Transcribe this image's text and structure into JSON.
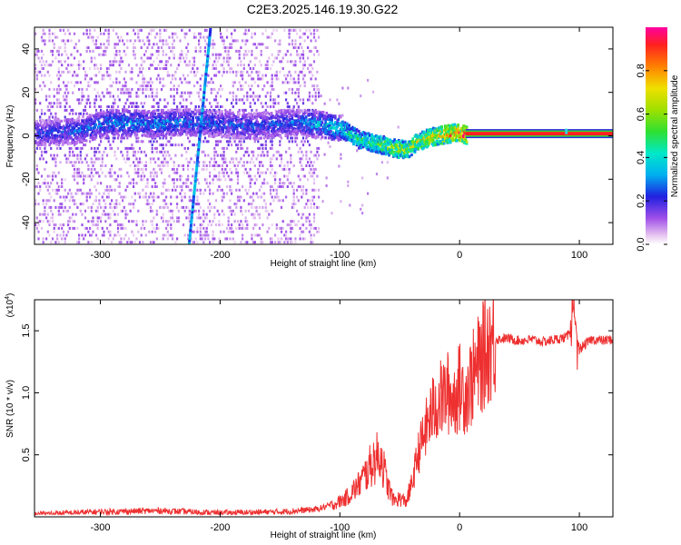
{
  "title": "C2E3.2025.146.19.30.G22",
  "chart_data": [
    {
      "type": "heatmap",
      "xlabel": "Height of straight line (km)",
      "ylabel": "Frequency (Hz)",
      "xlim": [
        -355,
        128
      ],
      "ylim": [
        -50,
        50
      ],
      "xticks": [
        -300,
        -200,
        -100,
        0,
        100
      ],
      "yticks": [
        -40,
        -20,
        0,
        20,
        40
      ],
      "colorbar": {
        "label": "Normalized spectral amplitude",
        "range": [
          0,
          1
        ],
        "ticks": [
          "0.0",
          "0.2",
          "0.4",
          "0.6",
          "0.8"
        ],
        "tick_values": [
          0.0,
          0.2,
          0.4,
          0.6,
          0.8
        ]
      },
      "ridge": [
        {
          "x": -350,
          "y": 2,
          "a": 0.25
        },
        {
          "x": -320,
          "y": 3,
          "a": 0.3
        },
        {
          "x": -290,
          "y": 7,
          "a": 0.35
        },
        {
          "x": -260,
          "y": 6,
          "a": 0.33
        },
        {
          "x": -230,
          "y": 7,
          "a": 0.33
        },
        {
          "x": -200,
          "y": 6,
          "a": 0.28
        },
        {
          "x": -170,
          "y": 5,
          "a": 0.28
        },
        {
          "x": -140,
          "y": 7,
          "a": 0.3
        },
        {
          "x": -120,
          "y": 6,
          "a": 0.38
        },
        {
          "x": -100,
          "y": 4,
          "a": 0.45
        },
        {
          "x": -85,
          "y": -1,
          "a": 0.5
        },
        {
          "x": -70,
          "y": -3,
          "a": 0.55
        },
        {
          "x": -55,
          "y": -5,
          "a": 0.7
        },
        {
          "x": -45,
          "y": -6,
          "a": 0.65
        },
        {
          "x": -35,
          "y": -2,
          "a": 0.7
        },
        {
          "x": -25,
          "y": 0,
          "a": 0.8
        },
        {
          "x": -15,
          "y": 1,
          "a": 0.85
        },
        {
          "x": -5,
          "y": 2,
          "a": 0.9
        },
        {
          "x": 5,
          "y": 1,
          "a": 0.95
        },
        {
          "x": 128,
          "y": 1,
          "a": 0.95
        }
      ],
      "streak": {
        "x0": -226,
        "y0": -50,
        "x1": -208,
        "y1": 50
      }
    },
    {
      "type": "line",
      "xlabel": "Height of straight line (km)",
      "ylabel": "SNR (10 * v/v)",
      "y_multiplier_label": "(x10",
      "y_multiplier_exp": "4",
      "xlim": [
        -355,
        128
      ],
      "ylim": [
        0,
        17500
      ],
      "xticks": [
        -300,
        -200,
        -100,
        0,
        100
      ],
      "yticks": [
        5000,
        10000,
        15000
      ],
      "ytick_labels": [
        "0.5",
        "1.0",
        "1.5"
      ],
      "series": [
        {
          "color": "#ee3030",
          "x": [
            -355,
            -300,
            -250,
            -200,
            -150,
            -120,
            -105,
            -95,
            -85,
            -78,
            -72,
            -66,
            -60,
            -55,
            -50,
            -45,
            -40,
            -35,
            -30,
            -25,
            -20,
            -15,
            -10,
            -5,
            0,
            5,
            10,
            15,
            20,
            25,
            30,
            40,
            50,
            60,
            70,
            80,
            90,
            95,
            100,
            110,
            120,
            128
          ],
          "y": [
            200,
            400,
            500,
            300,
            400,
            600,
            1000,
            1500,
            2500,
            3500,
            4500,
            5000,
            2500,
            1300,
            1500,
            1200,
            2500,
            5000,
            6500,
            8000,
            9000,
            9500,
            10000,
            9500,
            10500,
            10000,
            11000,
            12000,
            13000,
            14000,
            14300,
            14400,
            14200,
            14300,
            14100,
            14300,
            14500,
            16500,
            13500,
            14300,
            14200,
            14300
          ]
        }
      ]
    }
  ]
}
